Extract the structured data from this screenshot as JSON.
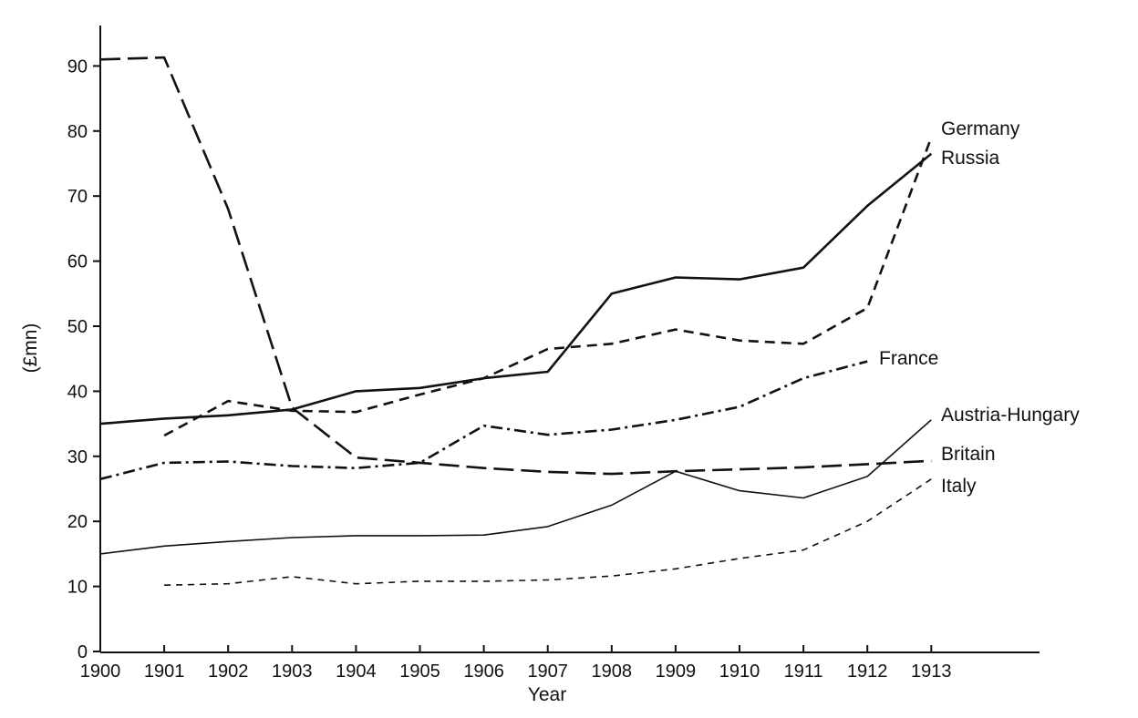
{
  "chart_data": {
    "type": "line",
    "title": "",
    "xlabel": "Year",
    "ylabel": "(£mn)",
    "x": [
      1900,
      1901,
      1902,
      1903,
      1904,
      1905,
      1906,
      1907,
      1908,
      1909,
      1910,
      1911,
      1912,
      1913
    ],
    "x_tick_labels": [
      "1900",
      "1901",
      "1902",
      "1903",
      "1904",
      "1905",
      "1906",
      "1907",
      "1908",
      "1909",
      "1910",
      "1911",
      "1912",
      "1913"
    ],
    "ylim": [
      0,
      95
    ],
    "y_ticks": [
      0,
      10,
      20,
      30,
      40,
      50,
      60,
      70,
      80,
      90
    ],
    "y_tick_labels": [
      "0",
      "10",
      "20",
      "30",
      "40",
      "50",
      "60",
      "70",
      "80",
      "90"
    ],
    "grid": false,
    "legend": "labels at line ends",
    "series": [
      {
        "name": "Germany",
        "style": "dashed",
        "x": [
          1901,
          1902,
          1903,
          1904,
          1905,
          1906,
          1907,
          1908,
          1909,
          1910,
          1911,
          1912,
          1913
        ],
        "values": [
          33.2,
          38.5,
          37.0,
          36.8,
          39.5,
          42.0,
          46.5,
          47.3,
          49.5,
          47.8,
          47.3,
          52.8,
          79.0
        ]
      },
      {
        "name": "Russia",
        "style": "solid-thick",
        "x": [
          1900,
          1901,
          1902,
          1903,
          1904,
          1905,
          1906,
          1907,
          1908,
          1909,
          1910,
          1911,
          1912,
          1913
        ],
        "values": [
          35.0,
          35.8,
          36.3,
          37.2,
          40.0,
          40.5,
          42.0,
          43.0,
          55.0,
          57.5,
          57.2,
          59.0,
          68.5,
          76.5
        ]
      },
      {
        "name": "France",
        "style": "dash-dot",
        "x": [
          1900,
          1901,
          1902,
          1903,
          1904,
          1905,
          1906,
          1907,
          1908,
          1909,
          1910,
          1911,
          1912
        ],
        "values": [
          26.5,
          29.0,
          29.2,
          28.5,
          28.2,
          29.0,
          34.7,
          33.3,
          34.1,
          35.6,
          37.6,
          42.0,
          44.6
        ]
      },
      {
        "name": "Austria-Hungary",
        "style": "solid-thin",
        "x": [
          1900,
          1901,
          1902,
          1903,
          1904,
          1905,
          1906,
          1907,
          1908,
          1909,
          1910,
          1911,
          1912,
          1913
        ],
        "values": [
          15.0,
          16.2,
          16.9,
          17.5,
          17.8,
          17.8,
          17.9,
          19.2,
          22.5,
          27.7,
          24.7,
          23.6,
          26.9,
          35.6
        ]
      },
      {
        "name": "Britain",
        "style": "long-dash",
        "x": [
          1900,
          1901,
          1902,
          1903,
          1904,
          1905,
          1906,
          1907,
          1908,
          1909,
          1910,
          1911,
          1912,
          1913
        ],
        "values": [
          91.0,
          91.3,
          68.0,
          37.5,
          29.8,
          29.0,
          28.2,
          27.6,
          27.3,
          27.7,
          28.0,
          28.3,
          28.8,
          29.3
        ]
      },
      {
        "name": "Italy",
        "style": "short-dash",
        "x": [
          1901,
          1902,
          1903,
          1904,
          1905,
          1906,
          1907,
          1908,
          1909,
          1910,
          1911,
          1912,
          1913
        ],
        "values": [
          10.2,
          10.4,
          11.5,
          10.4,
          10.8,
          10.8,
          11.0,
          11.6,
          12.7,
          14.3,
          15.6,
          20.0,
          26.5
        ]
      }
    ]
  }
}
